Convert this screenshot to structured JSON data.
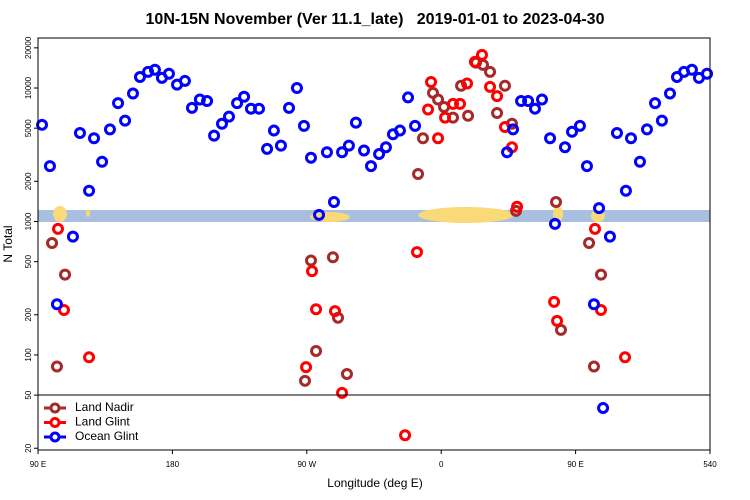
{
  "chart_data": {
    "type": "scatter",
    "title": "10N-15N November (Ver 11.1_late)   2019-01-01 to 2023-04-30",
    "x_label": "Longitude (deg E)",
    "y_label": "N Total",
    "xlim": [
      90,
      540
    ],
    "ylim": [
      19.4,
      23700
    ],
    "ylog": true,
    "legend": "lower left",
    "xticks": [
      {
        "value": 90,
        "label": "90 E"
      },
      180,
      {
        "value": 270,
        "label": "90 W"
      },
      {
        "value": 360,
        "label": "0"
      },
      {
        "value": 450,
        "label": "90 E"
      },
      540
    ],
    "yticks": [
      20,
      50,
      100,
      200,
      500,
      1000,
      2000,
      5000,
      10000,
      20000
    ],
    "series": [
      {
        "name": "Land Nadir",
        "color": "#a52a2a",
        "x": [
          99.4,
          108.1,
          102.7,
          272.8,
          276.2,
          268.8,
          287.5,
          290.9,
          296.9,
          344.5,
          347.8,
          354.5,
          357.9,
          361.9,
          367.9,
          373.3,
          378.0,
          383.3,
          388.0,
          392.7,
          397.4,
          402.7,
          407.4,
          410.1,
          436.9,
          440.2,
          459.0,
          462.3,
          467.0
        ],
        "values": [
          690,
          400,
          82,
          510,
          107,
          64,
          540,
          190,
          72,
          2270,
          4200,
          9200,
          8200,
          7200,
          6000,
          10400,
          6200,
          15500,
          14900,
          13200,
          6500,
          10400,
          5400,
          1200,
          1400,
          154,
          690,
          82,
          400
        ]
      },
      {
        "name": "Land Glint",
        "color": "#ff0000",
        "x": [
          103.4,
          107.4,
          124.2,
          273.5,
          269.5,
          276.2,
          288.9,
          293.6,
          335.8,
          343.8,
          351.2,
          353.2,
          357.9,
          362.6,
          367.9,
          372.6,
          377.3,
          382.6,
          387.3,
          392.7,
          397.4,
          402.7,
          407.4,
          410.8,
          435.6,
          437.6,
          463.0,
          467.0,
          483.1
        ],
        "values": [
          880,
          217,
          96,
          425,
          81,
          220,
          213,
          52,
          25,
          590,
          6900,
          11100,
          4200,
          6000,
          7600,
          7600,
          10800,
          15700,
          17700,
          10200,
          8700,
          5100,
          3600,
          1290,
          250,
          180,
          880,
          217,
          96
        ]
      },
      {
        "name": "Ocean Glint",
        "color": "#0000ff",
        "x": [
          92.7,
          98.0,
          102.7,
          113.4,
          118.1,
          124.2,
          127.5,
          132.9,
          138.2,
          143.6,
          148.3,
          153.6,
          158.3,
          163.7,
          168.3,
          173.0,
          177.7,
          183.1,
          188.4,
          193.1,
          198.4,
          203.2,
          207.9,
          213.2,
          217.9,
          223.3,
          228.0,
          232.6,
          238.0,
          243.4,
          248.0,
          252.7,
          258.1,
          263.4,
          268.1,
          272.8,
          278.2,
          283.5,
          288.2,
          293.6,
          298.2,
          302.9,
          308.3,
          313.0,
          318.4,
          323.0,
          327.7,
          332.4,
          337.8,
          342.5,
          404.1,
          408.1,
          413.5,
          418.2,
          422.8,
          427.5,
          432.9,
          436.2,
          442.9,
          447.6,
          452.9,
          457.6,
          462.3,
          465.7,
          468.4,
          473.0,
          477.7,
          483.7,
          487.1,
          493.1,
          497.8,
          503.2,
          507.8,
          513.2,
          517.9,
          522.6,
          527.9,
          532.6,
          538.0
        ],
        "values": [
          5300,
          2600,
          240,
          770,
          4600,
          1700,
          4200,
          2800,
          4900,
          7700,
          5700,
          9100,
          12100,
          13200,
          13700,
          11900,
          12800,
          10600,
          11300,
          7100,
          8200,
          8000,
          4400,
          5400,
          6100,
          7700,
          8600,
          7000,
          7000,
          3500,
          4800,
          3700,
          7100,
          10000,
          5200,
          3000,
          1120,
          3300,
          1400,
          3300,
          3700,
          5500,
          3400,
          2600,
          3200,
          3600,
          4500,
          4800,
          8500,
          5200,
          3300,
          4900,
          8000,
          8000,
          7000,
          8200,
          4200,
          960,
          3600,
          4700,
          5200,
          2600,
          240,
          1260,
          40,
          770,
          4600,
          1700,
          4200,
          2800,
          4900,
          7700,
          5700,
          9100,
          12100,
          13200,
          13700,
          11900,
          12800
        ]
      }
    ]
  }
}
